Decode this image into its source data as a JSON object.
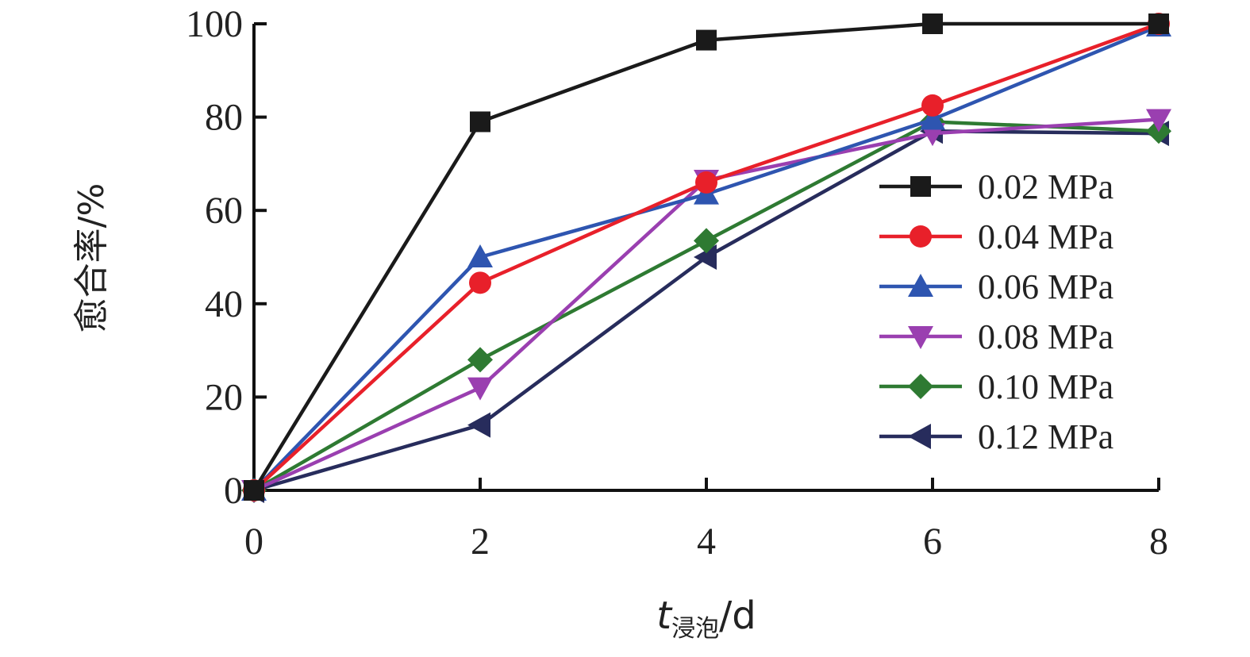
{
  "chart_data": {
    "type": "line",
    "xlabel_main": "t",
    "xlabel_sub": "浸泡",
    "xlabel_unit": "/d",
    "ylabel": "愈合率/%",
    "xlim": [
      0,
      8
    ],
    "ylim": [
      0,
      100
    ],
    "x_ticks": [
      0,
      2,
      4,
      6,
      8
    ],
    "y_ticks": [
      0,
      20,
      40,
      60,
      80,
      100
    ],
    "grid": false,
    "legend_position": "right",
    "x": [
      0,
      2,
      4,
      6,
      8
    ],
    "series": [
      {
        "name": "0.02 MPa",
        "values": [
          0,
          79,
          96.5,
          100,
          100
        ],
        "color": "#1a1a1a",
        "marker": "square"
      },
      {
        "name": "0.04 MPa",
        "values": [
          0,
          44.5,
          66,
          82.5,
          100
        ],
        "color": "#e8202a",
        "marker": "circle"
      },
      {
        "name": "0.06 MPa",
        "values": [
          0,
          50,
          63.5,
          79.5,
          99.5
        ],
        "color": "#2e55b0",
        "marker": "triangle-up"
      },
      {
        "name": "0.08 MPa",
        "values": [
          0,
          22,
          66.5,
          76.5,
          79.5
        ],
        "color": "#9a3fb0",
        "marker": "triangle-down"
      },
      {
        "name": "0.10 MPa",
        "values": [
          0,
          28,
          53.5,
          79,
          77
        ],
        "color": "#2e7a32",
        "marker": "diamond"
      },
      {
        "name": "0.12 MPa",
        "values": [
          0,
          14,
          50,
          77,
          76.5
        ],
        "color": "#272c5c",
        "marker": "triangle-left"
      }
    ]
  }
}
